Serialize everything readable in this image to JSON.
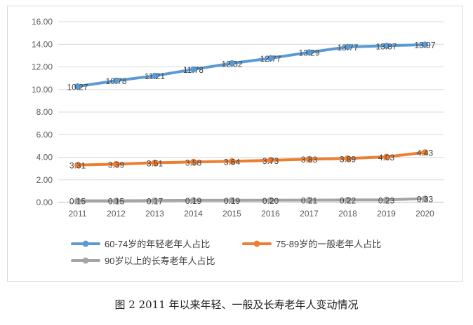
{
  "caption": "图 2 2011 年以来年轻、一般及长寿老年人变动情况",
  "chart_data": {
    "type": "line",
    "title": "",
    "xlabel": "",
    "ylabel": "",
    "ylim": [
      0,
      16
    ],
    "yticks": [
      "0.00",
      "2.00",
      "4.00",
      "6.00",
      "8.00",
      "10.00",
      "12.00",
      "14.00",
      "16.00"
    ],
    "grid": true,
    "legend_position": "bottom",
    "categories": [
      "2011",
      "2012",
      "2013",
      "2014",
      "2015",
      "2016",
      "2017",
      "2018",
      "2019",
      "2020"
    ],
    "series": [
      {
        "name": "60-74岁的年轻老年人占比",
        "color": "#5b9bd5",
        "values": [
          10.27,
          10.78,
          11.21,
          11.78,
          12.32,
          12.77,
          13.29,
          13.77,
          13.87,
          13.97
        ],
        "labels": [
          "10.27",
          "10.78",
          "11.21",
          "11.78",
          "12.32",
          "12.77",
          "13.29",
          "13.77",
          "13.87",
          "13.97"
        ]
      },
      {
        "name": "75-89岁的一般老年人占比",
        "color": "#ed7d31",
        "values": [
          3.31,
          3.39,
          3.51,
          3.58,
          3.64,
          3.73,
          3.83,
          3.89,
          4.03,
          4.43
        ],
        "labels": [
          "3.31",
          "3.39",
          "3.51",
          "3.58",
          "3.64",
          "3.73",
          "3.83",
          "3.89",
          "4.03",
          "4.43"
        ]
      },
      {
        "name": "90岁以上的长寿老年人占比",
        "color": "#a5a5a5",
        "values": [
          0.15,
          0.15,
          0.17,
          0.19,
          0.19,
          0.2,
          0.21,
          0.22,
          0.23,
          0.33
        ],
        "labels": [
          "0.15",
          "0.15",
          "0.17",
          "0.19",
          "0.19",
          "0.20",
          "0.21",
          "0.22",
          "0.23",
          "0.33"
        ]
      }
    ]
  }
}
